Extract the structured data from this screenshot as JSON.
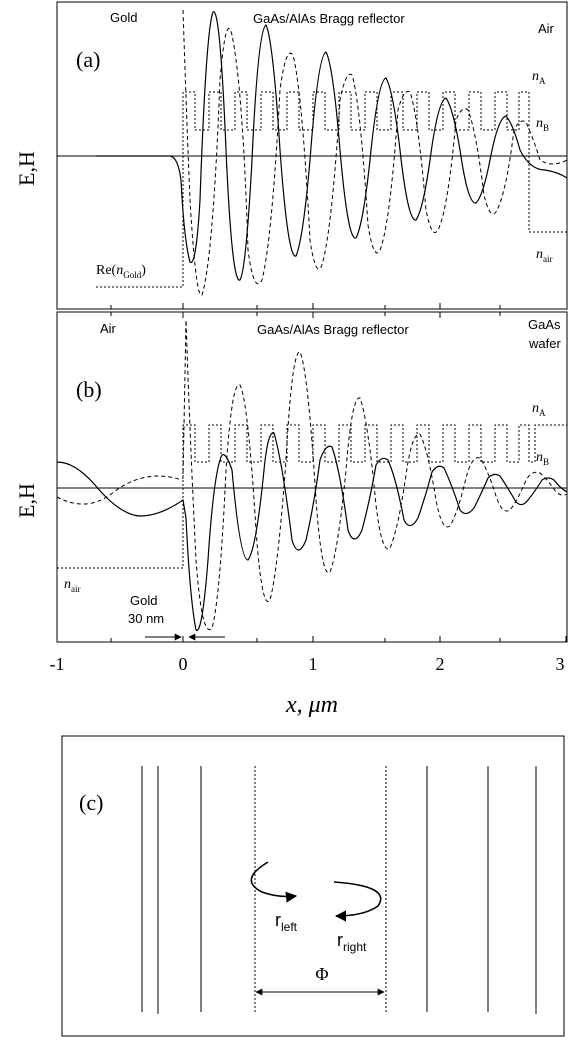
{
  "panel_a": {
    "label": "(a)",
    "region_left": "Gold",
    "region_mid": "GaAs/AlAs Bragg reflector",
    "region_right": "Air",
    "ylabel": "E,H",
    "nA_base": "n",
    "nA_sub": "A",
    "nB_base": "n",
    "nB_sub": "B",
    "nair_base": "n",
    "nair_sub": "air",
    "ngold_pre": "Re(",
    "ngold_base": "n",
    "ngold_sub": "Gold",
    "ngold_post": ")"
  },
  "panel_b": {
    "label": "(b)",
    "region_left": "Air",
    "region_mid": "GaAs/AlAs Bragg reflector",
    "region_right_line1": "GaAs",
    "region_right_line2": "wafer",
    "ylabel": "E,H",
    "nA_base": "n",
    "nA_sub": "A",
    "nB_base": "n",
    "nB_sub": "B",
    "nair_base": "n",
    "nair_sub": "air",
    "gold_line1": "Gold",
    "gold_line2": "30 nm"
  },
  "x_axis": {
    "label": "x, μm",
    "ticks": [
      "-1",
      "0",
      "1",
      "2",
      "3"
    ]
  },
  "panel_c": {
    "label": "(c)",
    "r_left_base": "r",
    "r_left_sub": "left",
    "r_right_base": "r",
    "r_right_sub": "right",
    "phase": "Φ"
  }
}
